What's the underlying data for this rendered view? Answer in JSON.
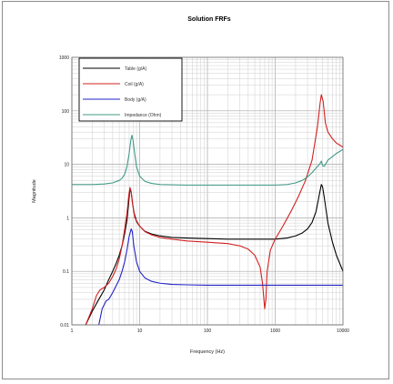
{
  "chart_data": {
    "type": "line",
    "title": "Solution FRFs",
    "xlabel": "Frequency (Hz)",
    "ylabel": "Magnitude",
    "x_scale": "log",
    "y_scale": "log",
    "xlim": [
      1,
      10000
    ],
    "ylim": [
      0.01,
      1000
    ],
    "grid": true,
    "legend_position": "top-left",
    "x_tick_labels": [
      "1",
      "10",
      "100",
      "1000",
      "10000"
    ],
    "y_tick_labels": [
      "0.01",
      "0.1",
      "1",
      "10",
      "100",
      "1000"
    ],
    "series": [
      {
        "name": "Table (g/A)",
        "color": "#000000",
        "points": [
          [
            1.6,
            0.01
          ],
          [
            2,
            0.018
          ],
          [
            2.5,
            0.03
          ],
          [
            3,
            0.045
          ],
          [
            3.5,
            0.07
          ],
          [
            4,
            0.1
          ],
          [
            4.5,
            0.14
          ],
          [
            5,
            0.2
          ],
          [
            5.5,
            0.3
          ],
          [
            6,
            0.5
          ],
          [
            6.5,
            0.9
          ],
          [
            6.9,
            2.0
          ],
          [
            7.2,
            3.5
          ],
          [
            7.5,
            3.0
          ],
          [
            7.8,
            2.0
          ],
          [
            8.2,
            1.3
          ],
          [
            9,
            0.85
          ],
          [
            10,
            0.7
          ],
          [
            12,
            0.56
          ],
          [
            15,
            0.5
          ],
          [
            20,
            0.46
          ],
          [
            30,
            0.43
          ],
          [
            50,
            0.42
          ],
          [
            100,
            0.41
          ],
          [
            200,
            0.4
          ],
          [
            500,
            0.4
          ],
          [
            1000,
            0.4
          ],
          [
            1500,
            0.42
          ],
          [
            2000,
            0.46
          ],
          [
            2500,
            0.52
          ],
          [
            3000,
            0.62
          ],
          [
            3500,
            0.82
          ],
          [
            4000,
            1.3
          ],
          [
            4500,
            2.8
          ],
          [
            4800,
            4.2
          ],
          [
            5000,
            3.8
          ],
          [
            5300,
            2.4
          ],
          [
            6000,
            0.8
          ],
          [
            7000,
            0.35
          ],
          [
            8000,
            0.2
          ],
          [
            10000,
            0.1
          ]
        ]
      },
      {
        "name": "Coil (g/A)",
        "color": "#d42020",
        "points": [
          [
            1.6,
            0.01
          ],
          [
            2,
            0.02
          ],
          [
            2.3,
            0.035
          ],
          [
            2.6,
            0.045
          ],
          [
            3,
            0.05
          ],
          [
            3.5,
            0.06
          ],
          [
            4,
            0.08
          ],
          [
            4.5,
            0.11
          ],
          [
            5,
            0.17
          ],
          [
            5.5,
            0.3
          ],
          [
            6,
            0.6
          ],
          [
            6.5,
            1.2
          ],
          [
            6.9,
            2.6
          ],
          [
            7.2,
            3.7
          ],
          [
            7.5,
            3.1
          ],
          [
            7.8,
            2.0
          ],
          [
            8.5,
            1.0
          ],
          [
            10,
            0.7
          ],
          [
            12,
            0.55
          ],
          [
            15,
            0.48
          ],
          [
            20,
            0.43
          ],
          [
            30,
            0.4
          ],
          [
            50,
            0.37
          ],
          [
            100,
            0.35
          ],
          [
            200,
            0.33
          ],
          [
            300,
            0.3
          ],
          [
            400,
            0.26
          ],
          [
            500,
            0.2
          ],
          [
            600,
            0.12
          ],
          [
            650,
            0.06
          ],
          [
            700,
            0.02
          ],
          [
            730,
            0.03
          ],
          [
            760,
            0.1
          ],
          [
            850,
            0.25
          ],
          [
            1000,
            0.4
          ],
          [
            1300,
            0.7
          ],
          [
            1700,
            1.3
          ],
          [
            2200,
            2.5
          ],
          [
            2800,
            5
          ],
          [
            3500,
            12
          ],
          [
            4200,
            50
          ],
          [
            4600,
            140
          ],
          [
            4800,
            200
          ],
          [
            5100,
            150
          ],
          [
            5500,
            60
          ],
          [
            6000,
            40
          ],
          [
            7000,
            30
          ],
          [
            8000,
            25
          ],
          [
            10000,
            21
          ]
        ]
      },
      {
        "name": "Body (g/A)",
        "color": "#2222c8",
        "points": [
          [
            2.5,
            0.01
          ],
          [
            2.8,
            0.02
          ],
          [
            3.2,
            0.028
          ],
          [
            3.5,
            0.03
          ],
          [
            4,
            0.04
          ],
          [
            5,
            0.07
          ],
          [
            5.5,
            0.1
          ],
          [
            6,
            0.15
          ],
          [
            6.5,
            0.25
          ],
          [
            7,
            0.45
          ],
          [
            7.5,
            0.62
          ],
          [
            7.8,
            0.55
          ],
          [
            8.2,
            0.3
          ],
          [
            9,
            0.15
          ],
          [
            10,
            0.1
          ],
          [
            12,
            0.075
          ],
          [
            15,
            0.065
          ],
          [
            20,
            0.06
          ],
          [
            30,
            0.057
          ],
          [
            50,
            0.056
          ],
          [
            100,
            0.055
          ],
          [
            500,
            0.055
          ],
          [
            1000,
            0.055
          ],
          [
            5000,
            0.055
          ],
          [
            10000,
            0.055
          ]
        ]
      },
      {
        "name": "Impedance (Ohm)",
        "color": "#3f9a86",
        "points": [
          [
            1,
            4.2
          ],
          [
            2,
            4.2
          ],
          [
            3,
            4.3
          ],
          [
            4,
            4.5
          ],
          [
            5,
            5
          ],
          [
            5.5,
            5.5
          ],
          [
            6,
            6.5
          ],
          [
            6.5,
            9
          ],
          [
            7,
            16
          ],
          [
            7.4,
            28
          ],
          [
            7.7,
            35
          ],
          [
            8,
            28
          ],
          [
            8.5,
            15
          ],
          [
            9,
            9
          ],
          [
            10,
            6
          ],
          [
            12,
            4.8
          ],
          [
            15,
            4.4
          ],
          [
            20,
            4.2
          ],
          [
            50,
            4.1
          ],
          [
            100,
            4.1
          ],
          [
            500,
            4.1
          ],
          [
            1000,
            4.1
          ],
          [
            1500,
            4.2
          ],
          [
            2000,
            4.5
          ],
          [
            2500,
            5
          ],
          [
            3000,
            5.8
          ],
          [
            3500,
            7
          ],
          [
            4000,
            8.5
          ],
          [
            4500,
            10
          ],
          [
            4800,
            11.5
          ],
          [
            5000,
            9.5
          ],
          [
            5300,
            9.2
          ],
          [
            6000,
            12
          ],
          [
            7000,
            14
          ],
          [
            8000,
            16
          ],
          [
            10000,
            19
          ]
        ]
      }
    ]
  }
}
